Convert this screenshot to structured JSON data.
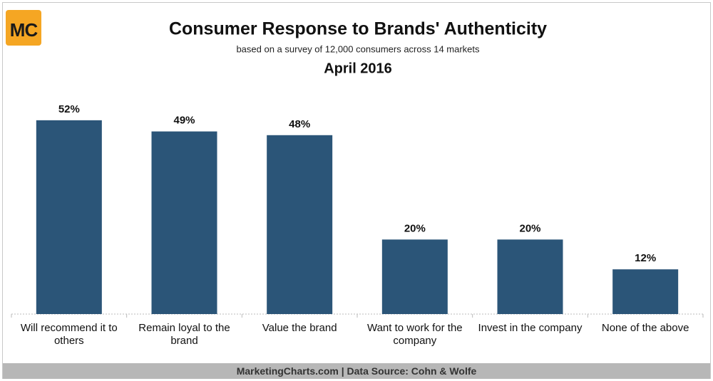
{
  "logo": "MC",
  "footer": "MarketingCharts.com | Data Source: Cohn & Wolfe",
  "chart_data": {
    "type": "bar",
    "title": "Consumer Response to Brands' Authenticity",
    "subtitle": "based on a survey of 12,000 consumers across 14 markets",
    "date": "April 2016",
    "categories": [
      "Will recommend it to others",
      "Remain loyal to the brand",
      "Value the brand",
      "Want to work for the company",
      "Invest in the company",
      "None of the above"
    ],
    "values": [
      52,
      49,
      48,
      20,
      20,
      12
    ],
    "value_labels": [
      "52%",
      "49%",
      "48%",
      "20%",
      "20%",
      "12%"
    ],
    "color": "#2b5578",
    "ylim": [
      0,
      60
    ]
  }
}
